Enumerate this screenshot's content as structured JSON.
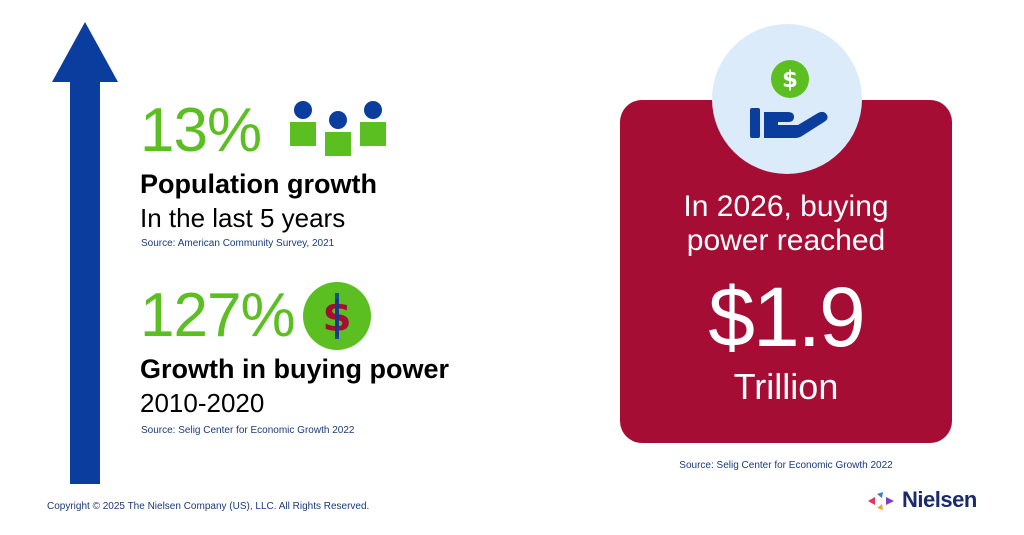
{
  "stats": [
    {
      "percent": "13%",
      "title": "Population growth",
      "subtitle": "In the last 5 years",
      "source": "Source: American Community Survey, 2021",
      "icon": "people-group-icon"
    },
    {
      "percent": "127%",
      "title": "Growth in buying power",
      "subtitle": "2010-2020",
      "source": "Source: Selig Center for Economic Growth 2022",
      "icon": "dollar-coin-icon"
    }
  ],
  "card": {
    "line1": "In 2026, buying",
    "line2": "power reached",
    "amount": "$1.9",
    "unit": "Trillion",
    "source": "Source: Selig Center for Economic Growth 2022",
    "icon": "hand-holding-dollar-icon"
  },
  "footer": {
    "copyright": "Copyright © 2025 The Nielsen Company (US), LLC. All Rights Reserved.",
    "brand": "Nielsen"
  },
  "colors": {
    "green": "#5bbf21",
    "blue": "#0a3d9e",
    "card": "#a50d35",
    "circle": "#dcebf9",
    "navy": "#1b2a6b"
  }
}
